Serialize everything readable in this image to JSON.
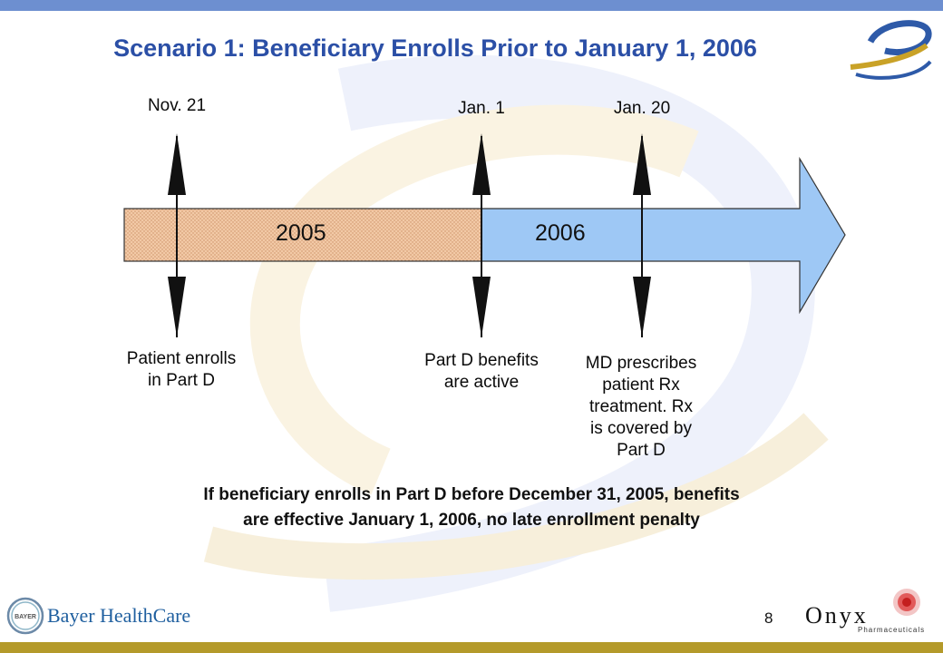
{
  "slide": {
    "title": "Scenario 1: Beneficiary Enrolls Prior to January 1, 2006",
    "page_number": "8",
    "footer_line1": "If beneficiary enrolls in Part D before December 31, 2005, benefits",
    "footer_line2": "are effective January 1, 2006, no late enrollment penalty"
  },
  "timeline": {
    "years": [
      "2005",
      "2006"
    ],
    "events": [
      {
        "date": "Nov. 21",
        "desc": [
          "Patient enrolls",
          "in Part D"
        ]
      },
      {
        "date": "Jan. 1",
        "desc": [
          "Part D benefits",
          "are active"
        ]
      },
      {
        "date": "Jan. 20",
        "desc": [
          "MD prescribes",
          "patient Rx",
          "treatment.  Rx",
          "is covered by",
          "Part D"
        ]
      }
    ]
  },
  "logos": {
    "left_brand": "Bayer HealthCare",
    "left_seal_text": "BAYER",
    "right_brand": "Onyx",
    "right_brand_sub": "Pharmaceuticals"
  },
  "colors": {
    "title": "#2b4fa6",
    "top_bar": "#6d8fd0",
    "bottom_bar": "#b49a2a",
    "arrow_2005": "#f2c9a6",
    "arrow_2006": "#9ec8f5"
  }
}
